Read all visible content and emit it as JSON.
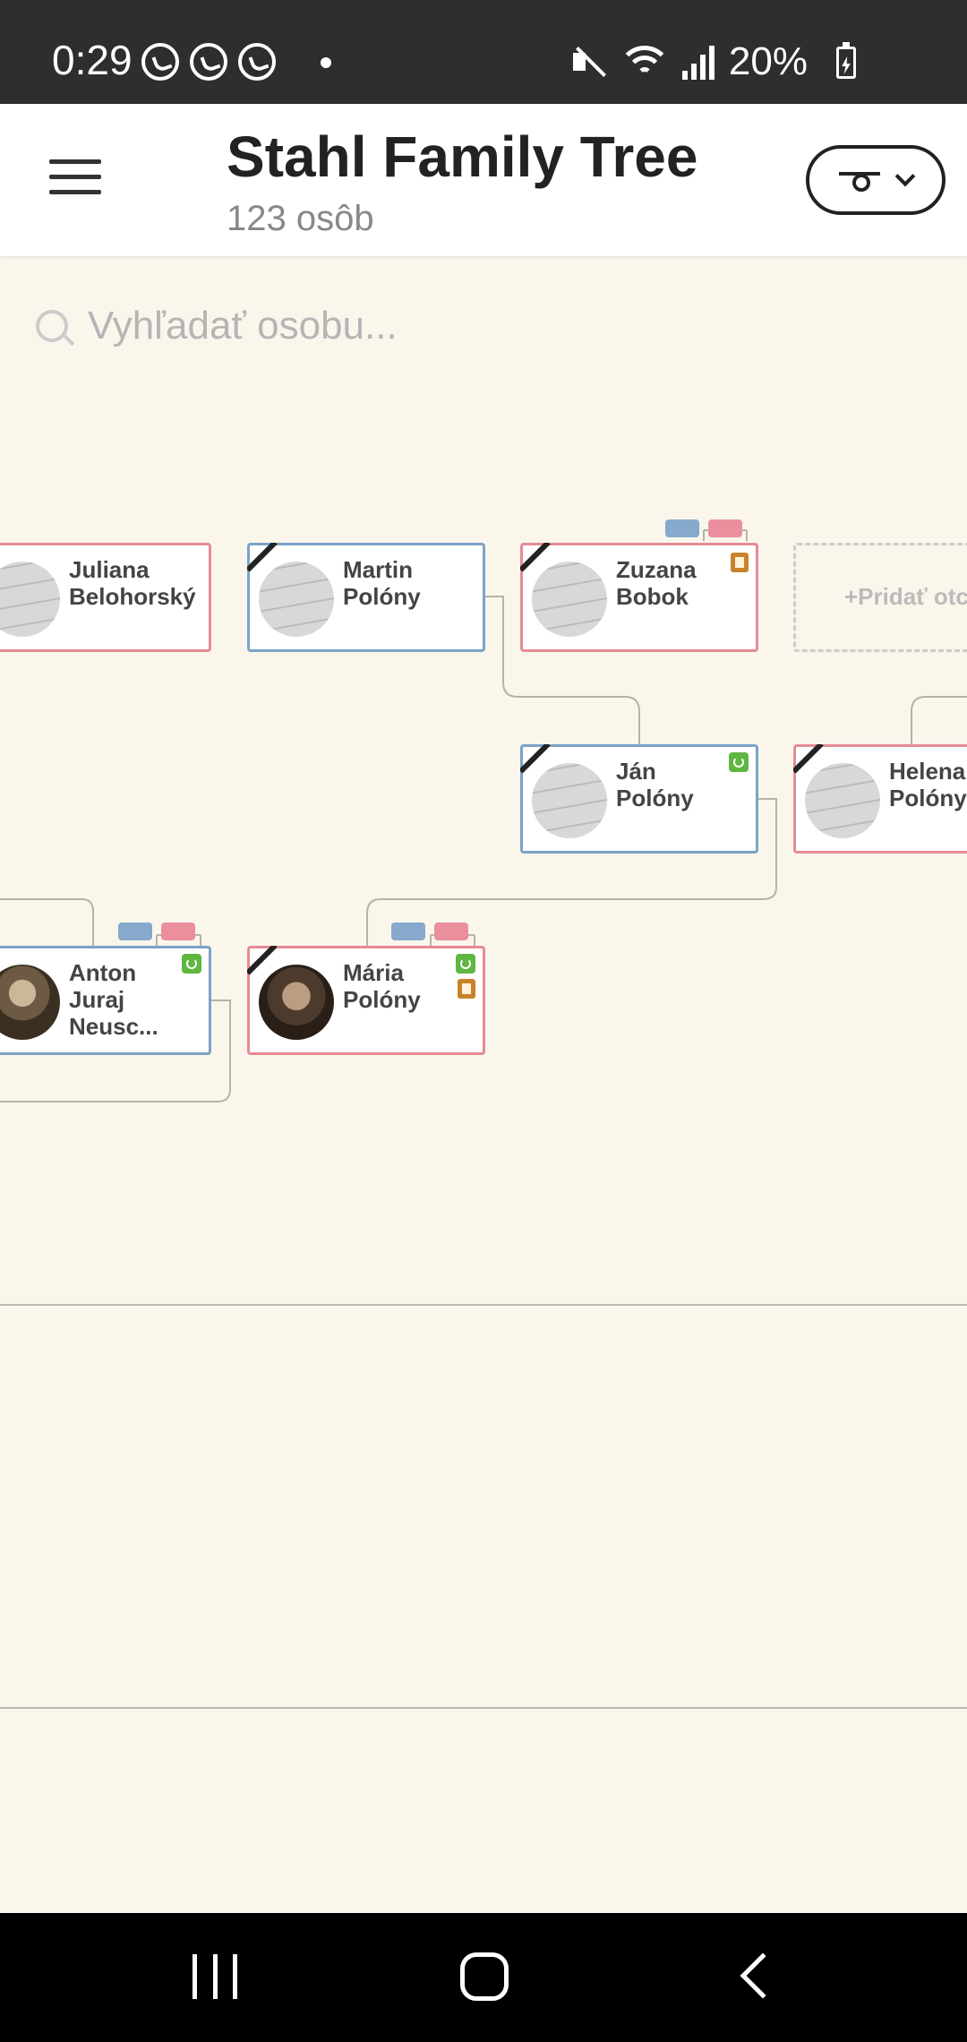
{
  "status_bar": {
    "time": "0:29",
    "battery": "20%"
  },
  "header": {
    "title": "Stahl Family Tree",
    "subtitle": "123 osôb"
  },
  "search": {
    "placeholder": "Vyhľadať osobu..."
  },
  "tree": {
    "persons": [
      {
        "name": "Juliana\nBelohorský",
        "gender": "female",
        "avatar": "script",
        "deceased": false
      },
      {
        "name": "Martin\nPolóny",
        "gender": "male",
        "avatar": "script",
        "deceased": true
      },
      {
        "name": "Zuzana\nBobok",
        "gender": "female",
        "avatar": "script",
        "deceased": true
      },
      {
        "name": "Ján\nPolóny",
        "gender": "male",
        "avatar": "script",
        "deceased": true
      },
      {
        "name": "Helena\nPolóny",
        "gender": "female",
        "avatar": "script",
        "deceased": true
      },
      {
        "name": "Anton\nJuraj\nNeusc...",
        "gender": "male",
        "avatar": "photo",
        "deceased": false
      },
      {
        "name": "Mária\nPolóny",
        "gender": "female",
        "avatar": "photo",
        "deceased": true
      }
    ],
    "add_parent_label": "+Pridať otc"
  },
  "icons": {
    "menu": "hamburger-menu-icon",
    "view_toggle": "tree-view-icon",
    "search": "search-icon",
    "sync": "sync-icon",
    "record": "record-book-icon",
    "deceased": "mourning-ribbon-icon"
  },
  "colors": {
    "male_border": "#7aa3c8",
    "female_border": "#e58b95",
    "background": "#faf6ec",
    "sync": "#5fb640",
    "record": "#c9822b"
  }
}
